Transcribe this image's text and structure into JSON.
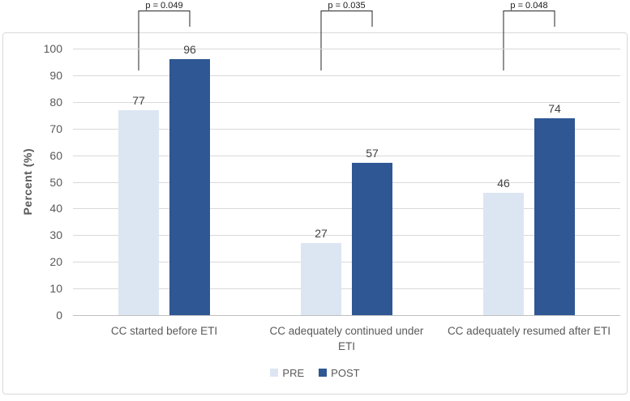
{
  "chart_data": {
    "type": "bar",
    "ylabel": "Percent (%)",
    "ylim": [
      0,
      100
    ],
    "ytick_step": 10,
    "grid": true,
    "legend_position": "bottom",
    "categories": [
      "CC started before ETI",
      "CC adequately continued under ETI",
      "CC adequately resumed after ETI"
    ],
    "series": [
      {
        "name": "PRE",
        "color": "#dce6f2",
        "values": [
          77,
          27,
          46
        ]
      },
      {
        "name": "POST",
        "color": "#2e5794",
        "values": [
          96,
          57,
          74
        ]
      }
    ],
    "p_values": [
      "p = 0.049",
      "p = 0.035",
      "p = 0.048"
    ]
  },
  "colors": {
    "gridline": "#d9d9d9",
    "axis_line": "#bfbfbf",
    "tick_text": "#595959",
    "data_label_text": "#404040",
    "frame_border": "#d9d9d9",
    "bracket_line": "#262626"
  }
}
